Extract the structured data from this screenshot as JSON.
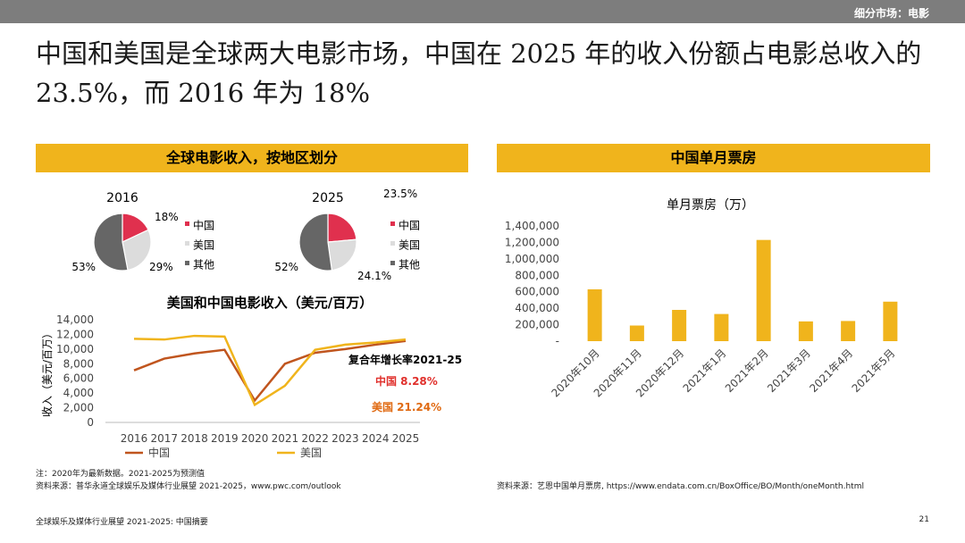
{
  "header": {
    "breadcrumb": "细分市场：电影"
  },
  "headline": "中国和美国是全球两大电影市场，中国在 2025 年的收入份额占电影总收入的 23.5%，而 2016 年为 18%",
  "left_section_title": "全球电影收入，按地区划分",
  "right_section_title": "中国单月票房",
  "colors": {
    "china_pie": "#e0304e",
    "usa_pie": "#dcdcdc",
    "other_pie": "#666666",
    "china_line": "#c0551e",
    "usa_line": "#f0b41c",
    "accent": "#f0b41c",
    "china_label": "#e0302c",
    "usa_label": "#e06a12"
  },
  "chart_data": [
    {
      "type": "pie",
      "title": "2016",
      "categories": [
        "中国",
        "美国",
        "其他"
      ],
      "values": [
        18,
        29,
        53
      ],
      "labels": [
        "18%",
        "29%",
        "53%"
      ]
    },
    {
      "type": "pie",
      "title": "2025",
      "categories": [
        "中国",
        "美国",
        "其他"
      ],
      "values": [
        23.5,
        24.1,
        52
      ],
      "labels": [
        "23.5%",
        "24.1%",
        "52%"
      ]
    },
    {
      "type": "line",
      "title": "美国和中国电影收入（美元/百万）",
      "ylabel": "收入（美元/百万）",
      "x": [
        "2016",
        "2017",
        "2018",
        "2019",
        "2020",
        "2021",
        "2022",
        "2023",
        "2024",
        "2025"
      ],
      "ylim": [
        0,
        14000
      ],
      "yticks": [
        "14,000",
        "12,000",
        "10,000",
        "8,000",
        "6,000",
        "4,000",
        "2,000",
        "0"
      ],
      "series": [
        {
          "name": "中国",
          "values": [
            7100,
            8700,
            9400,
            9900,
            3000,
            8000,
            9500,
            10000,
            10600,
            11100
          ]
        },
        {
          "name": "美国",
          "values": [
            11400,
            11300,
            11800,
            11700,
            2400,
            5000,
            9900,
            10600,
            10900,
            11300
          ]
        }
      ],
      "annotation": {
        "title": "复合年增长率2021-25",
        "china": "中国 8.28%",
        "usa": "美国 21.24%"
      }
    },
    {
      "type": "bar",
      "title": "单月票房（万）",
      "categories": [
        "2020年10月",
        "2020年11月",
        "2020年12月",
        "2021年1月",
        "2021年2月",
        "2021年3月",
        "2021年4月",
        "2021年5月"
      ],
      "values": [
        630000,
        190000,
        380000,
        330000,
        1230000,
        240000,
        245000,
        480000
      ],
      "ylim": [
        0,
        1400000
      ],
      "yticks": [
        "1,400,000",
        "1,200,000",
        "1,000,000",
        "800,000",
        "600,000",
        "400,000",
        "200,000",
        "-"
      ]
    }
  ],
  "notes": {
    "left_note1": "注：2020年为最新数据。2021-2025为预测值",
    "left_note2": "资料来源：普华永道全球娱乐及媒体行业展望 2021-2025，www.pwc.com/outlook",
    "right_note": "资料来源：艺恩中国单月票房, https://www.endata.com.cn/BoxOffice/BO/Month/oneMonth.html"
  },
  "footer": {
    "left": "全球娱乐及媒体行业展望 2021-2025: 中国摘要",
    "page": "21"
  }
}
